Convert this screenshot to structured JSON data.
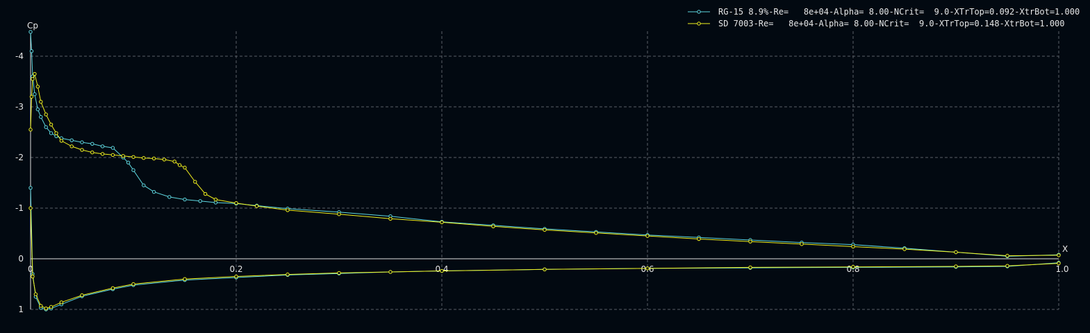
{
  "chart_data": {
    "type": "line",
    "xlabel": "X",
    "ylabel": "Cp",
    "xlim": [
      0,
      1.0
    ],
    "ylim": [
      -4.4,
      1.0
    ],
    "y_inverted": true,
    "grid": true,
    "legend_position": "top-right",
    "x_ticks": [
      {
        "v": 0.0,
        "label": "0"
      },
      {
        "v": 0.2,
        "label": "0.2"
      },
      {
        "v": 0.4,
        "label": "0.4"
      },
      {
        "v": 0.6,
        "label": "0.6"
      },
      {
        "v": 0.8,
        "label": "0.8"
      },
      {
        "v": 1.0,
        "label": "1.0"
      }
    ],
    "y_ticks": [
      {
        "v": -4,
        "label": "-4"
      },
      {
        "v": -3,
        "label": "-3"
      },
      {
        "v": -2,
        "label": "-2"
      },
      {
        "v": -1,
        "label": "-1"
      },
      {
        "v": 0,
        "label": "0"
      },
      {
        "v": 1,
        "label": "1"
      }
    ],
    "series": [
      {
        "name": "RG-15 8.9%-Re=   8e+04-Alpha= 8.00-NCrit=  9.0-XTrTop=0.092-XtrBot=1.000",
        "color": "#5fd7e0",
        "upper": {
          "x": [
            0.0,
            0.001,
            0.002,
            0.004,
            0.007,
            0.01,
            0.015,
            0.02,
            0.025,
            0.03,
            0.04,
            0.05,
            0.06,
            0.07,
            0.08,
            0.09,
            0.095,
            0.1,
            0.11,
            0.12,
            0.135,
            0.15,
            0.165,
            0.18,
            0.2,
            0.22,
            0.25,
            0.3,
            0.35,
            0.4,
            0.45,
            0.5,
            0.55,
            0.6,
            0.65,
            0.7,
            0.75,
            0.8,
            0.85,
            0.9,
            0.95,
            1.0
          ],
          "y": [
            -4.48,
            -4.1,
            -3.6,
            -3.25,
            -2.95,
            -2.8,
            -2.6,
            -2.48,
            -2.42,
            -2.38,
            -2.34,
            -2.3,
            -2.27,
            -2.22,
            -2.19,
            -2.0,
            -1.9,
            -1.75,
            -1.45,
            -1.32,
            -1.22,
            -1.17,
            -1.14,
            -1.11,
            -1.09,
            -1.05,
            -0.99,
            -0.92,
            -0.84,
            -0.73,
            -0.66,
            -0.59,
            -0.53,
            -0.47,
            -0.42,
            -0.37,
            -0.32,
            -0.28,
            -0.21,
            -0.13,
            -0.05,
            -0.08
          ]
        },
        "lower": {
          "x": [
            0.0,
            0.002,
            0.005,
            0.01,
            0.015,
            0.02,
            0.03,
            0.05,
            0.08,
            0.1,
            0.15,
            0.2,
            0.25,
            0.3,
            0.35,
            0.4,
            0.5,
            0.6,
            0.7,
            0.8,
            0.9,
            0.95,
            1.0
          ],
          "y": [
            -1.4,
            0.3,
            0.75,
            0.97,
            1.0,
            0.98,
            0.9,
            0.74,
            0.6,
            0.52,
            0.42,
            0.37,
            0.32,
            0.29,
            0.26,
            0.24,
            0.21,
            0.19,
            0.18,
            0.17,
            0.16,
            0.15,
            0.08
          ]
        }
      },
      {
        "name": "SD 7003-Re=   8e+04-Alpha= 8.00-NCrit=  9.0-XTrTop=0.148-XtrBot=1.000",
        "color": "#f2f21e",
        "upper": {
          "x": [
            0.0,
            0.001,
            0.002,
            0.004,
            0.007,
            0.01,
            0.015,
            0.02,
            0.025,
            0.03,
            0.04,
            0.05,
            0.06,
            0.07,
            0.08,
            0.09,
            0.1,
            0.11,
            0.12,
            0.13,
            0.14,
            0.145,
            0.15,
            0.16,
            0.17,
            0.18,
            0.2,
            0.22,
            0.25,
            0.3,
            0.35,
            0.4,
            0.45,
            0.5,
            0.55,
            0.6,
            0.65,
            0.7,
            0.75,
            0.8,
            0.85,
            0.9,
            0.95,
            1.0
          ],
          "y": [
            -2.55,
            -3.2,
            -3.55,
            -3.65,
            -3.4,
            -3.1,
            -2.85,
            -2.65,
            -2.48,
            -2.33,
            -2.22,
            -2.15,
            -2.1,
            -2.07,
            -2.05,
            -2.03,
            -2.01,
            -1.99,
            -1.98,
            -1.96,
            -1.92,
            -1.85,
            -1.8,
            -1.52,
            -1.28,
            -1.17,
            -1.1,
            -1.04,
            -0.96,
            -0.88,
            -0.79,
            -0.72,
            -0.64,
            -0.57,
            -0.51,
            -0.45,
            -0.39,
            -0.34,
            -0.29,
            -0.24,
            -0.19,
            -0.13,
            -0.06,
            -0.07
          ]
        },
        "lower": {
          "x": [
            0.0,
            0.002,
            0.005,
            0.01,
            0.015,
            0.02,
            0.03,
            0.05,
            0.08,
            0.1,
            0.15,
            0.2,
            0.25,
            0.3,
            0.35,
            0.4,
            0.5,
            0.6,
            0.7,
            0.8,
            0.9,
            0.95,
            1.0
          ],
          "y": [
            -1.0,
            0.35,
            0.7,
            0.93,
            0.98,
            0.95,
            0.86,
            0.72,
            0.58,
            0.5,
            0.4,
            0.35,
            0.31,
            0.28,
            0.26,
            0.24,
            0.21,
            0.19,
            0.17,
            0.16,
            0.15,
            0.14,
            0.09
          ]
        }
      }
    ]
  }
}
